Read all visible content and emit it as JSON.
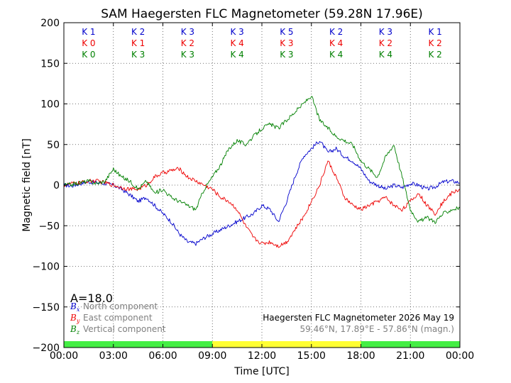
{
  "chart_data": {
    "type": "line",
    "title": "SAM Haegersten FLC Magnetometer (59.28N 17.96E)",
    "xlabel": "Time [UTC]",
    "ylabel": "Magnetic field [nT]",
    "xlim": [
      0,
      24
    ],
    "ylim": [
      -200,
      200
    ],
    "x_tick_labels": [
      "00:00",
      "03:00",
      "06:00",
      "09:00",
      "12:00",
      "15:00",
      "18:00",
      "21:00",
      "00:00"
    ],
    "y_ticks": [
      -200,
      -150,
      -100,
      -50,
      0,
      50,
      100,
      150,
      200
    ],
    "y_tick_labels": [
      "−200",
      "−150",
      "−100",
      "−50",
      "0",
      "50",
      "100",
      "150",
      "200"
    ],
    "grid": true,
    "a_index": "A=18.0",
    "k_index": {
      "colors": [
        "#0000cc",
        "#ee0000",
        "#008000"
      ],
      "rows": [
        [
          "K 1",
          "K 2",
          "K 3",
          "K 3",
          "K 5",
          "K 2",
          "K 3",
          "K 1"
        ],
        [
          "K 0",
          "K 1",
          "K 2",
          "K 4",
          "K 3",
          "K 4",
          "K 2",
          "K 2"
        ],
        [
          "K 0",
          "K 3",
          "K 3",
          "K 4",
          "K 3",
          "K 4",
          "K 4",
          "K 2"
        ]
      ]
    },
    "activity_bar": [
      {
        "start": 0,
        "end": 9,
        "color": "#44ee44"
      },
      {
        "start": 9,
        "end": 18,
        "color": "#ffff33"
      },
      {
        "start": 18,
        "end": 24,
        "color": "#44ee44"
      }
    ],
    "legend": [
      {
        "symbol": "B",
        "subscript": "x",
        "label": "North component",
        "color": "#0000cc"
      },
      {
        "symbol": "B",
        "subscript": "y",
        "label": "East component",
        "color": "#ee0000"
      },
      {
        "symbol": "B",
        "subscript": "z",
        "label": "Vertical component",
        "color": "#008000"
      }
    ],
    "info_line1": "Haegersten FLC Magnetometer 2026 May 19",
    "info_line2": "59.46°N, 17.89°E - 57.86°N (magn.)",
    "x": [
      0,
      0.5,
      1,
      1.5,
      2,
      2.5,
      3,
      3.5,
      4,
      4.5,
      5,
      5.5,
      6,
      6.5,
      7,
      7.5,
      8,
      8.5,
      9,
      9.5,
      10,
      10.5,
      11,
      11.5,
      12,
      12.5,
      13,
      13.5,
      14,
      14.5,
      15,
      15.5,
      16,
      16.5,
      17,
      17.5,
      18,
      18.5,
      19,
      19.5,
      20,
      20.5,
      21,
      21.5,
      22,
      22.5,
      23,
      23.5,
      24
    ],
    "series": [
      {
        "name": "North component",
        "color": "#0000cc",
        "values": [
          0,
          -1,
          2,
          4,
          3,
          2,
          0,
          -5,
          -12,
          -20,
          -15,
          -25,
          -35,
          -45,
          -60,
          -70,
          -72,
          -65,
          -60,
          -55,
          -50,
          -45,
          -40,
          -35,
          -25,
          -30,
          -45,
          -20,
          10,
          35,
          45,
          55,
          40,
          45,
          35,
          30,
          20,
          5,
          0,
          -5,
          0,
          -3,
          2,
          0,
          -5,
          -2,
          4,
          5,
          3
        ]
      },
      {
        "name": "East component",
        "color": "#ee0000",
        "values": [
          0,
          2,
          3,
          5,
          5,
          3,
          0,
          -3,
          -5,
          -5,
          0,
          10,
          15,
          18,
          20,
          10,
          5,
          0,
          -5,
          -15,
          -20,
          -30,
          -50,
          -65,
          -72,
          -70,
          -75,
          -70,
          -55,
          -40,
          -20,
          0,
          30,
          10,
          -15,
          -25,
          -30,
          -25,
          -20,
          -15,
          -25,
          -30,
          -20,
          -10,
          -25,
          -35,
          -20,
          -10,
          -5
        ]
      },
      {
        "name": "Vertical component",
        "color": "#008000",
        "values": [
          0,
          1,
          3,
          5,
          2,
          5,
          20,
          10,
          5,
          -5,
          5,
          -10,
          -5,
          -15,
          -20,
          -25,
          -30,
          -5,
          10,
          25,
          45,
          55,
          50,
          60,
          70,
          75,
          70,
          80,
          90,
          100,
          110,
          80,
          70,
          60,
          55,
          50,
          30,
          20,
          10,
          35,
          50,
          10,
          -30,
          -45,
          -40,
          -45,
          -35,
          -30,
          -28
        ]
      }
    ]
  }
}
